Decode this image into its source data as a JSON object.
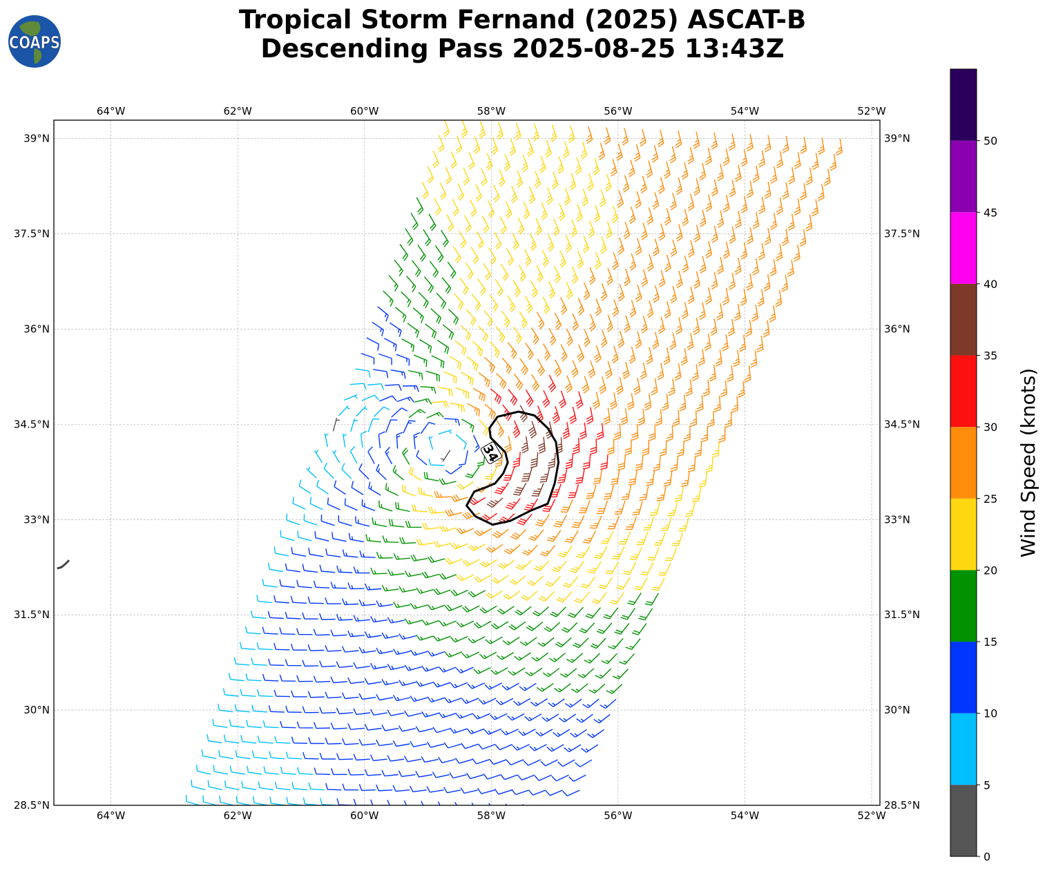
{
  "header": {
    "title_line1": "Tropical Storm Fernand (2025) ASCAT-B",
    "title_line2": "Descending Pass 2025-08-25 13:43Z",
    "logo_text": "COAPS"
  },
  "chart_data": {
    "type": "wind-barb map",
    "title": "Tropical Storm Fernand (2025) ASCAT-B Descending Pass 2025-08-25 13:43Z",
    "lon_range": [
      -64.9,
      -51.87
    ],
    "lat_range": [
      28.5,
      39.29
    ],
    "lon_ticks": [
      {
        "v": -64,
        "label": "64°W"
      },
      {
        "v": -62,
        "label": "62°W"
      },
      {
        "v": -60,
        "label": "60°W"
      },
      {
        "v": -58,
        "label": "58°W"
      },
      {
        "v": -56,
        "label": "56°W"
      },
      {
        "v": -54,
        "label": "54°W"
      },
      {
        "v": -52,
        "label": "52°W"
      }
    ],
    "lat_ticks": [
      {
        "v": 39,
        "label": "39°N"
      },
      {
        "v": 37.5,
        "label": "37.5°N"
      },
      {
        "v": 36,
        "label": "36°N"
      },
      {
        "v": 34.5,
        "label": "34.5°N"
      },
      {
        "v": 33,
        "label": "33°N"
      },
      {
        "v": 31.5,
        "label": "31.5°N"
      },
      {
        "v": 30,
        "label": "30°N"
      },
      {
        "v": 28.5,
        "label": "28.5°N"
      }
    ],
    "grid": true,
    "swath_corners": {
      "bottom_left": [
        -62.6,
        28.5
      ],
      "top_left": [
        -58.74,
        39.3
      ],
      "bottom_right": [
        -56.7,
        28.5
      ],
      "top_right": [
        -52.5,
        39.0
      ]
    },
    "storm_center": [
      -58.3,
      34.1
    ],
    "contour": {
      "label": "34",
      "level_kt": 34,
      "label_pos": [
        -58.0,
        34.05
      ],
      "points": [
        [
          -58.01,
          34.29
        ],
        [
          -58.03,
          34.44
        ],
        [
          -57.9,
          34.62
        ],
        [
          -57.57,
          34.7
        ],
        [
          -57.32,
          34.64
        ],
        [
          -57.11,
          34.44
        ],
        [
          -56.98,
          34.22
        ],
        [
          -56.94,
          33.9
        ],
        [
          -57.0,
          33.57
        ],
        [
          -57.11,
          33.25
        ],
        [
          -57.38,
          33.14
        ],
        [
          -57.7,
          32.98
        ],
        [
          -57.98,
          32.92
        ],
        [
          -58.25,
          33.05
        ],
        [
          -58.39,
          33.22
        ],
        [
          -58.27,
          33.44
        ],
        [
          -58.08,
          33.51
        ],
        [
          -57.94,
          33.57
        ],
        [
          -57.81,
          33.73
        ],
        [
          -57.74,
          33.9
        ],
        [
          -57.78,
          34.06
        ],
        [
          -57.94,
          34.22
        ]
      ]
    },
    "island_bermuda": [
      [
        -64.85,
        32.23
      ],
      [
        -64.78,
        32.25
      ],
      [
        -64.72,
        32.3
      ],
      [
        -64.66,
        32.36
      ]
    ],
    "colorbar": {
      "label": "Wind Speed (knots)",
      "min": 0,
      "max": 55,
      "bins": [
        {
          "from": 0,
          "to": 5,
          "color": "#555555"
        },
        {
          "from": 5,
          "to": 10,
          "color": "#00bfff"
        },
        {
          "from": 10,
          "to": 15,
          "color": "#0036ff"
        },
        {
          "from": 15,
          "to": 20,
          "color": "#009200"
        },
        {
          "from": 20,
          "to": 25,
          "color": "#ffd710"
        },
        {
          "from": 25,
          "to": 30,
          "color": "#ff8c0a"
        },
        {
          "from": 30,
          "to": 35,
          "color": "#ff1010"
        },
        {
          "from": 35,
          "to": 40,
          "color": "#7e3a28"
        },
        {
          "from": 40,
          "to": 45,
          "color": "#ff00f0"
        },
        {
          "from": 45,
          "to": 50,
          "color": "#8a00b0"
        },
        {
          "from": 50,
          "to": 55,
          "color": "#2a005c"
        }
      ],
      "ticks": [
        "0",
        "5",
        "10",
        "15",
        "20",
        "25",
        "30",
        "35",
        "40",
        "45",
        "50"
      ]
    }
  }
}
